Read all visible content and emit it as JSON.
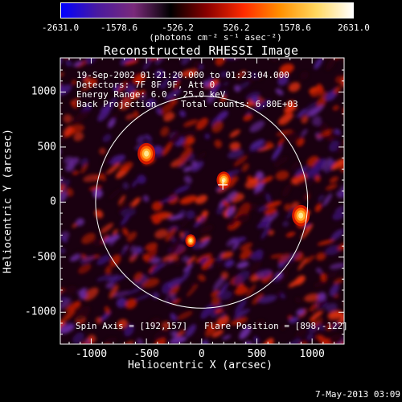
{
  "colorbar": {
    "ticks": [
      "-2631.0",
      "-1578.6",
      "-526.2",
      "526.2",
      "1578.6",
      "2631.0"
    ],
    "tick_values": [
      -2631.0,
      -1578.6,
      -526.2,
      526.2,
      1578.6,
      2631.0
    ],
    "range": [
      -2631.0,
      2631.0
    ],
    "units": "(photons cm⁻² s⁻¹ asec⁻²)",
    "colors": [
      "#0000ff",
      "#4a1aa0",
      "#7a2a7a",
      "#000000",
      "#8a0000",
      "#ff2a00",
      "#ff9000",
      "#ffd860",
      "#ffffff"
    ]
  },
  "title": "Reconstructed RHESSI Image",
  "info": {
    "line1": "19-Sep-2002 01:21:20.000 to 01:23:04.000",
    "line2": "Detectors: 7F 8F 9F, Att 0",
    "line3": "Energy Range: 6.0 - 25.0 keV",
    "line4_method": "Back Projection",
    "line4_counts": "Total counts: 6.80E+03"
  },
  "footer": {
    "spin_axis": "Spin Axis = [192,157]",
    "flare_position": "Flare Position = [898,-122]"
  },
  "axes": {
    "xlabel": "Heliocentric X (arcsec)",
    "ylabel": "Heliocentric Y (arcsec)",
    "xlim": [
      -1280,
      1290
    ],
    "ylim": [
      -1290,
      1310
    ],
    "xticks": [
      "-1000",
      "-500",
      "0",
      "500",
      "1000"
    ],
    "xtick_values": [
      -1000,
      -500,
      0,
      500,
      1000
    ],
    "yticks": [
      "1000",
      "500",
      "0",
      "-500",
      "-1000"
    ],
    "ytick_values": [
      1000,
      500,
      0,
      -500,
      -1000
    ]
  },
  "solar_disk": {
    "center": [
      0,
      0
    ],
    "radius": 960
  },
  "sources": [
    {
      "x": -500,
      "y": 440,
      "strength": 1.0
    },
    {
      "x": 898,
      "y": -122,
      "strength": 1.0
    },
    {
      "x": 200,
      "y": 200,
      "strength": 0.8
    },
    {
      "x": -100,
      "y": -350,
      "strength": 0.6
    }
  ],
  "crosshair": {
    "x": 192,
    "y": 157
  },
  "timestamp": "7-May-2013 03:09",
  "plot_bg_colors": {
    "purple": "#4a1a8a",
    "red": "#c01a00",
    "dark": "#2a0010",
    "hot": "#ffd860"
  }
}
